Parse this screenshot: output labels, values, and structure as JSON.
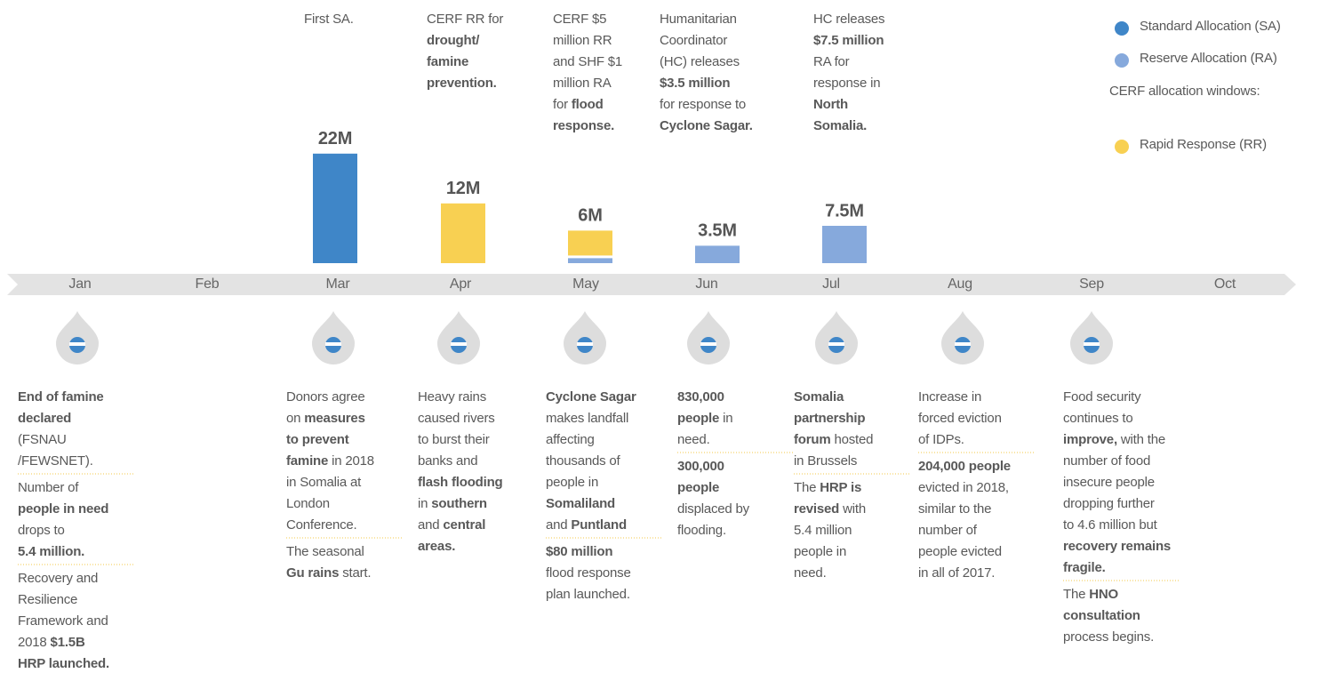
{
  "chart_data": {
    "type": "bar",
    "categories": [
      "Jan",
      "Feb",
      "Mar",
      "Apr",
      "May",
      "Jun",
      "Jul",
      "Aug",
      "Sep",
      "Oct"
    ],
    "series": [
      {
        "name": "Standard Allocation (SA)",
        "color": "#3f86c8",
        "values": [
          null,
          null,
          22,
          null,
          null,
          null,
          null,
          null,
          null,
          null
        ]
      },
      {
        "name": "Reserve Allocation (RA)",
        "color": "#86a9dc",
        "values": [
          null,
          null,
          null,
          null,
          1,
          3.5,
          7.5,
          null,
          null,
          null
        ]
      },
      {
        "name": "Rapid Response (RR)",
        "color": "#f8d052",
        "values": [
          null,
          null,
          null,
          12,
          5,
          null,
          null,
          null,
          null,
          null
        ]
      }
    ],
    "totals": [
      null,
      null,
      22,
      12,
      6,
      3.5,
      7.5,
      null,
      null,
      null
    ],
    "total_labels": [
      null,
      null,
      "22M",
      "12M",
      "6M",
      "3.5M",
      "7.5M",
      null,
      null,
      null
    ],
    "legend_heading": "CERF allocation windows:",
    "legend_position": "top-right",
    "notes_above": [
      null,
      null,
      [
        [
          {
            "text": "First SA."
          }
        ]
      ],
      [
        [
          {
            "text": "CERF RR for"
          }
        ],
        [
          {
            "text": "drought/",
            "bold": true
          }
        ],
        [
          {
            "text": "famine",
            "bold": true
          }
        ],
        [
          {
            "text": "prevention.",
            "bold": true
          }
        ]
      ],
      [
        [
          {
            "text": "CERF $5"
          }
        ],
        [
          {
            "text": "million RR"
          }
        ],
        [
          {
            "text": "and SHF $1"
          }
        ],
        [
          {
            "text": "million RA"
          }
        ],
        [
          {
            "text": "for "
          },
          {
            "text": "flood",
            "bold": true
          }
        ],
        [
          {
            "text": "response.",
            "bold": true
          }
        ]
      ],
      [
        [
          {
            "text": "Humanitarian"
          }
        ],
        [
          {
            "text": "Coordinator"
          }
        ],
        [
          {
            "text": "(HC) releases"
          }
        ],
        [
          {
            "text": "$3.5 million",
            "bold": true
          }
        ],
        [
          {
            "text": "for response to"
          }
        ],
        [
          {
            "text": "Cyclone Sagar.",
            "bold": true
          }
        ]
      ],
      [
        [
          {
            "text": "HC releases"
          }
        ],
        [
          {
            "text": "$7.5 million",
            "bold": true
          }
        ],
        [
          {
            "text": "RA for"
          }
        ],
        [
          {
            "text": "response in"
          }
        ],
        [
          {
            "text": "North",
            "bold": true
          }
        ],
        [
          {
            "text": "Somalia.",
            "bold": true
          }
        ]
      ],
      null,
      null,
      null
    ],
    "events": [
      [
        [
          [
            {
              "text": "End of famine",
              "bold": true
            }
          ],
          [
            {
              "text": "declared",
              "bold": true
            }
          ],
          [
            {
              "text": "(FSNAU"
            }
          ],
          [
            {
              "text": "/FEWSNET)."
            }
          ]
        ],
        [
          [
            {
              "text": "Number of"
            }
          ],
          [
            {
              "text": "people in need",
              "bold": true
            }
          ],
          [
            {
              "text": "drops to"
            }
          ],
          [
            {
              "text": "5.4 million.",
              "bold": true
            }
          ]
        ],
        [
          [
            {
              "text": "Recovery and"
            }
          ],
          [
            {
              "text": "Resilience"
            }
          ],
          [
            {
              "text": "Framework and"
            }
          ],
          [
            {
              "text": "2018 "
            },
            {
              "text": "$1.5B",
              "bold": true
            }
          ],
          [
            {
              "text": "HRP launched.",
              "bold": true
            }
          ]
        ]
      ],
      null,
      [
        [
          [
            {
              "text": "Donors agree"
            }
          ],
          [
            {
              "text": "on "
            },
            {
              "text": "measures",
              "bold": true
            }
          ],
          [
            {
              "text": "to prevent",
              "bold": true
            }
          ],
          [
            {
              "text": "famine",
              "bold": true
            },
            {
              "text": " in 2018"
            }
          ],
          [
            {
              "text": "in Somalia at"
            }
          ],
          [
            {
              "text": "London"
            }
          ],
          [
            {
              "text": "Conference."
            }
          ]
        ],
        [
          [
            {
              "text": "The seasonal"
            }
          ],
          [
            {
              "text": "Gu rains",
              "bold": true
            },
            {
              "text": " start."
            }
          ]
        ]
      ],
      [
        [
          [
            {
              "text": "Heavy rains"
            }
          ],
          [
            {
              "text": "caused rivers"
            }
          ],
          [
            {
              "text": "to burst their"
            }
          ],
          [
            {
              "text": "banks and"
            }
          ],
          [
            {
              "text": "flash flooding",
              "bold": true
            }
          ],
          [
            {
              "text": "in "
            },
            {
              "text": "southern",
              "bold": true
            }
          ],
          [
            {
              "text": "and "
            },
            {
              "text": "central",
              "bold": true
            }
          ],
          [
            {
              "text": "areas.",
              "bold": true
            }
          ]
        ]
      ],
      [
        [
          [
            {
              "text": "Cyclone Sagar",
              "bold": true
            }
          ],
          [
            {
              "text": "makes landfall"
            }
          ],
          [
            {
              "text": "affecting"
            }
          ],
          [
            {
              "text": "thousands of"
            }
          ],
          [
            {
              "text": "people in"
            }
          ],
          [
            {
              "text": "Somaliland",
              "bold": true
            }
          ],
          [
            {
              "text": "and "
            },
            {
              "text": "Puntland",
              "bold": true
            }
          ]
        ],
        [
          [
            {
              "text": "$80 million",
              "bold": true
            }
          ],
          [
            {
              "text": "flood response"
            }
          ],
          [
            {
              "text": "plan launched."
            }
          ]
        ]
      ],
      [
        [
          [
            {
              "text": "830,000",
              "bold": true
            }
          ],
          [
            {
              "text": "people",
              "bold": true
            },
            {
              "text": " in"
            }
          ],
          [
            {
              "text": "need."
            }
          ]
        ],
        [
          [
            {
              "text": "300,000",
              "bold": true
            }
          ],
          [
            {
              "text": "people",
              "bold": true
            }
          ],
          [
            {
              "text": "displaced by"
            }
          ],
          [
            {
              "text": "flooding."
            }
          ]
        ]
      ],
      [
        [
          [
            {
              "text": "Somalia",
              "bold": true
            }
          ],
          [
            {
              "text": "partnership",
              "bold": true
            }
          ],
          [
            {
              "text": "forum",
              "bold": true
            },
            {
              "text": " hosted"
            }
          ],
          [
            {
              "text": "in Brussels"
            }
          ]
        ],
        [
          [
            {
              "text": "The "
            },
            {
              "text": "HRP is",
              "bold": true
            }
          ],
          [
            {
              "text": "revised",
              "bold": true
            },
            {
              "text": " with"
            }
          ],
          [
            {
              "text": "5.4 million"
            }
          ],
          [
            {
              "text": "people in"
            }
          ],
          [
            {
              "text": "need."
            }
          ]
        ]
      ],
      [
        [
          [
            {
              "text": "Increase in"
            }
          ],
          [
            {
              "text": "forced eviction"
            }
          ],
          [
            {
              "text": "of IDPs."
            }
          ]
        ],
        [
          [
            {
              "text": "204,000 people",
              "bold": true
            }
          ],
          [
            {
              "text": "evicted in 2018,"
            }
          ],
          [
            {
              "text": "similar to the"
            }
          ],
          [
            {
              "text": "number of"
            }
          ],
          [
            {
              "text": "people evicted"
            }
          ],
          [
            {
              "text": "in all of 2017."
            }
          ]
        ]
      ],
      [
        [
          [
            {
              "text": "Food security"
            }
          ],
          [
            {
              "text": "continues to"
            }
          ],
          [
            {
              "text": "improve,",
              "bold": true
            },
            {
              "text": " with the"
            }
          ],
          [
            {
              "text": "number of food"
            }
          ],
          [
            {
              "text": "insecure people"
            }
          ],
          [
            {
              "text": "dropping further"
            }
          ],
          [
            {
              "text": "to 4.6 million but"
            }
          ],
          [
            {
              "text": "recovery remains",
              "bold": true
            }
          ],
          [
            {
              "text": "fragile.",
              "bold": true
            }
          ]
        ],
        [
          [
            {
              "text": "The "
            },
            {
              "text": "HNO",
              "bold": true
            }
          ],
          [
            {
              "text": "consultation",
              "bold": true
            }
          ],
          [
            {
              "text": "process begins."
            }
          ]
        ]
      ],
      null
    ]
  }
}
